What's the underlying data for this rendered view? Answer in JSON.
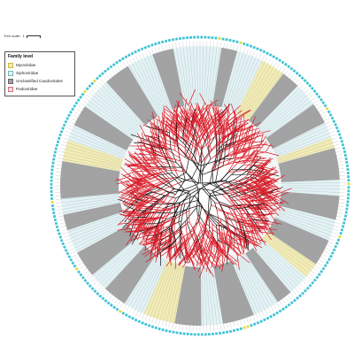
{
  "scale": {
    "label": "Tree scale:",
    "value": "1"
  },
  "legend": {
    "title": "Family level",
    "items": [
      {
        "label": "Myoviridae",
        "color": "#f3ecb3",
        "border": "#c9b84a"
      },
      {
        "label": "Siphoviridae",
        "color": "#e3f3f5",
        "border": "#7ab3bb"
      },
      {
        "label": "Unclassified Caudovirales",
        "color": "#a3a3a3",
        "border": "#666666"
      },
      {
        "label": "Podoviridae",
        "color": "#f7dde0",
        "border": "#d4707c"
      }
    ]
  },
  "colors": {
    "myoviridae": "#f3ecb3",
    "siphoviridae": "#e3f3f5",
    "unclassified": "#a3a3a3",
    "podoviridae": "#f7dde0",
    "tip_marker": "#3fc3d4",
    "highlight_marker": "#e6d93a",
    "branch_red": "#d81e2a",
    "branch_black": "#111111"
  }
}
